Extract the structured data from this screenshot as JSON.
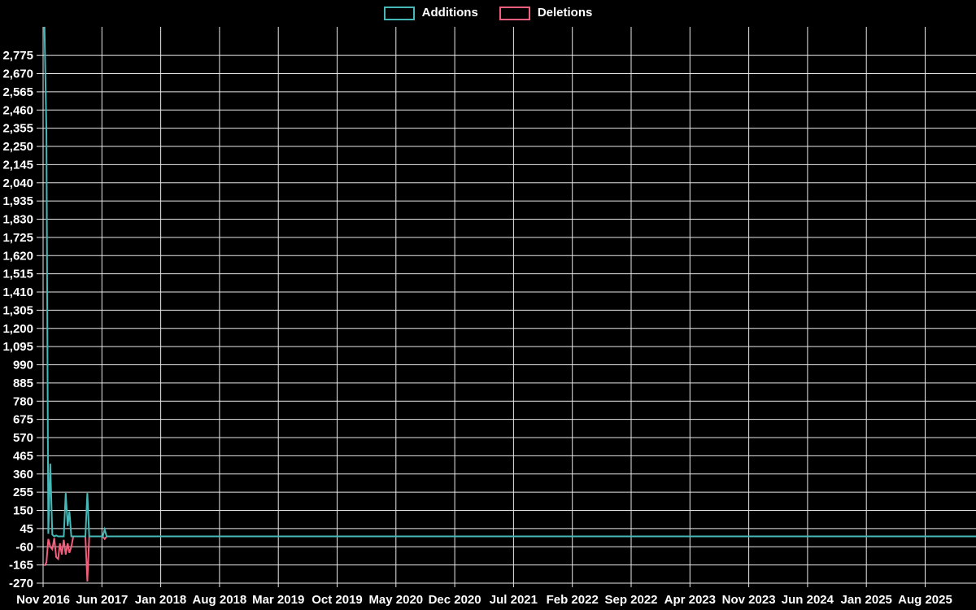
{
  "legend": {
    "additions_label": "Additions",
    "deletions_label": "Deletions"
  },
  "colors": {
    "background": "#000000",
    "grid": "#e8e8e8",
    "text": "#ffffff",
    "additions": "#47b8b8",
    "deletions": "#f15f7d"
  },
  "chart_data": {
    "type": "line",
    "title": "",
    "xlabel": "",
    "ylabel": "",
    "grid": "on",
    "legend_position": "top-center",
    "x": [
      "2016-11-06",
      "2016-11-13",
      "2016-11-20",
      "2016-11-27",
      "2016-12-04",
      "2016-12-11",
      "2016-12-18",
      "2016-12-25",
      "2017-01-01",
      "2017-01-08",
      "2017-01-15",
      "2017-01-22",
      "2017-01-29",
      "2017-02-05",
      "2017-02-12",
      "2017-02-19",
      "2017-04-02",
      "2017-04-09",
      "2017-04-16",
      "2017-06-04",
      "2017-06-11",
      "2017-06-18",
      "2025-08-31"
    ],
    "series": [
      {
        "name": "Additions",
        "values": [
          2940,
          2330,
          15,
          420,
          10,
          0,
          5,
          0,
          0,
          0,
          0,
          250,
          60,
          145,
          0,
          0,
          0,
          250,
          0,
          0,
          40,
          0,
          0
        ]
      },
      {
        "name": "Deletions",
        "values": [
          -170,
          -150,
          -15,
          -60,
          -75,
          -10,
          -120,
          -130,
          -40,
          -105,
          -20,
          -105,
          -40,
          -95,
          -60,
          0,
          0,
          -260,
          0,
          0,
          -15,
          0,
          0
        ]
      }
    ],
    "x_tick_labels": [
      "Nov 2016",
      "Jun 2017",
      "Jan 2018",
      "Aug 2018",
      "Mar 2019",
      "Oct 2019",
      "May 2020",
      "Dec 2020",
      "Jul 2021",
      "Feb 2022",
      "Sep 2022",
      "Apr 2023",
      "Nov 2023",
      "Jun 2024",
      "Jan 2025",
      "Aug 2025"
    ],
    "y_ticks": {
      "max": 2775,
      "min": -270,
      "step": 105
    },
    "ylim": [
      -270,
      2940
    ]
  }
}
